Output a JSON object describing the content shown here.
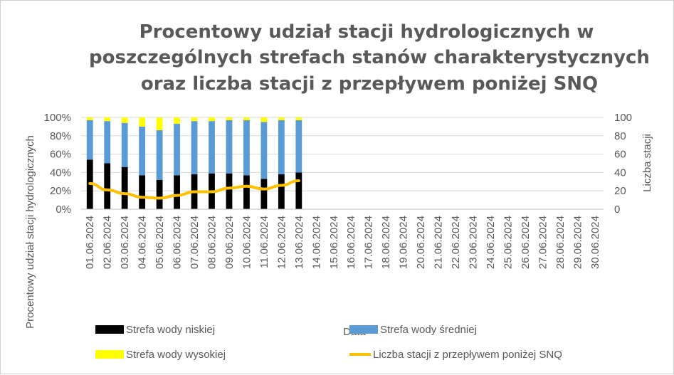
{
  "chart_data": {
    "type": "bar",
    "stacked": true,
    "title_lines": [
      "Procentowy udział stacji hydrologicznych w",
      "poszczególnych strefach stanów charakterystycznych",
      "oraz liczba stacji z przepływem poniżej SNQ"
    ],
    "xlabel": "Data",
    "ylabel": "Procentowy udział stacji hydrologicznych",
    "y2label": "Liczba stacji",
    "ylim": [
      0,
      100
    ],
    "y_ticks": [
      "0%",
      "20%",
      "40%",
      "60%",
      "80%",
      "100%"
    ],
    "y2lim": [
      0,
      100
    ],
    "y2_ticks": [
      "0",
      "20",
      "40",
      "60",
      "80",
      "100"
    ],
    "categories": [
      "01.06.2024",
      "02.06.2024",
      "03.06.2024",
      "04.06.2024",
      "05.06.2024",
      "06.06.2024",
      "07.06.2024",
      "08.06.2024",
      "09.06.2024",
      "10.06.2024",
      "11.06.2024",
      "12.06.2024",
      "13.06.2024",
      "14.06.2024",
      "15.06.2024",
      "16.06.2024",
      "17.06.2024",
      "18.06.2024",
      "19.06.2024",
      "20.06.2024",
      "21.06.2024",
      "22.06.2024",
      "23.06.2024",
      "24.06.2024",
      "25.06.2024",
      "26.06.2024",
      "27.06.2024",
      "28.06.2024",
      "29.06.2024",
      "30.06.2024"
    ],
    "series": [
      {
        "name": "Strefa wody niskiej",
        "kind": "bar",
        "color": "#000000",
        "values": [
          54,
          50,
          46,
          37,
          32,
          37,
          38,
          39,
          39,
          37,
          33,
          38,
          40,
          null,
          null,
          null,
          null,
          null,
          null,
          null,
          null,
          null,
          null,
          null,
          null,
          null,
          null,
          null,
          null,
          null
        ]
      },
      {
        "name": "Strefa wody średniej",
        "kind": "bar",
        "color": "#5b9bd5",
        "values": [
          43,
          46,
          48,
          53,
          54,
          56,
          58,
          57,
          58,
          60,
          62,
          59,
          57,
          null,
          null,
          null,
          null,
          null,
          null,
          null,
          null,
          null,
          null,
          null,
          null,
          null,
          null,
          null,
          null,
          null
        ]
      },
      {
        "name": "Strefa wody wysokiej",
        "kind": "bar",
        "color": "#ffff00",
        "values": [
          3,
          4,
          6,
          10,
          14,
          7,
          4,
          4,
          3,
          3,
          5,
          3,
          3,
          null,
          null,
          null,
          null,
          null,
          null,
          null,
          null,
          null,
          null,
          null,
          null,
          null,
          null,
          null,
          null,
          null
        ]
      },
      {
        "name": "Liczba stacji z przepływem poniżej SNQ",
        "kind": "line",
        "axis": "right",
        "color": "#ffc000",
        "values": [
          28,
          21,
          17,
          13,
          12,
          15,
          19,
          19,
          23,
          25,
          22,
          26,
          31,
          null,
          null,
          null,
          null,
          null,
          null,
          null,
          null,
          null,
          null,
          null,
          null,
          null,
          null,
          null,
          null,
          null
        ]
      }
    ],
    "grid": true,
    "legend": "bottom"
  }
}
